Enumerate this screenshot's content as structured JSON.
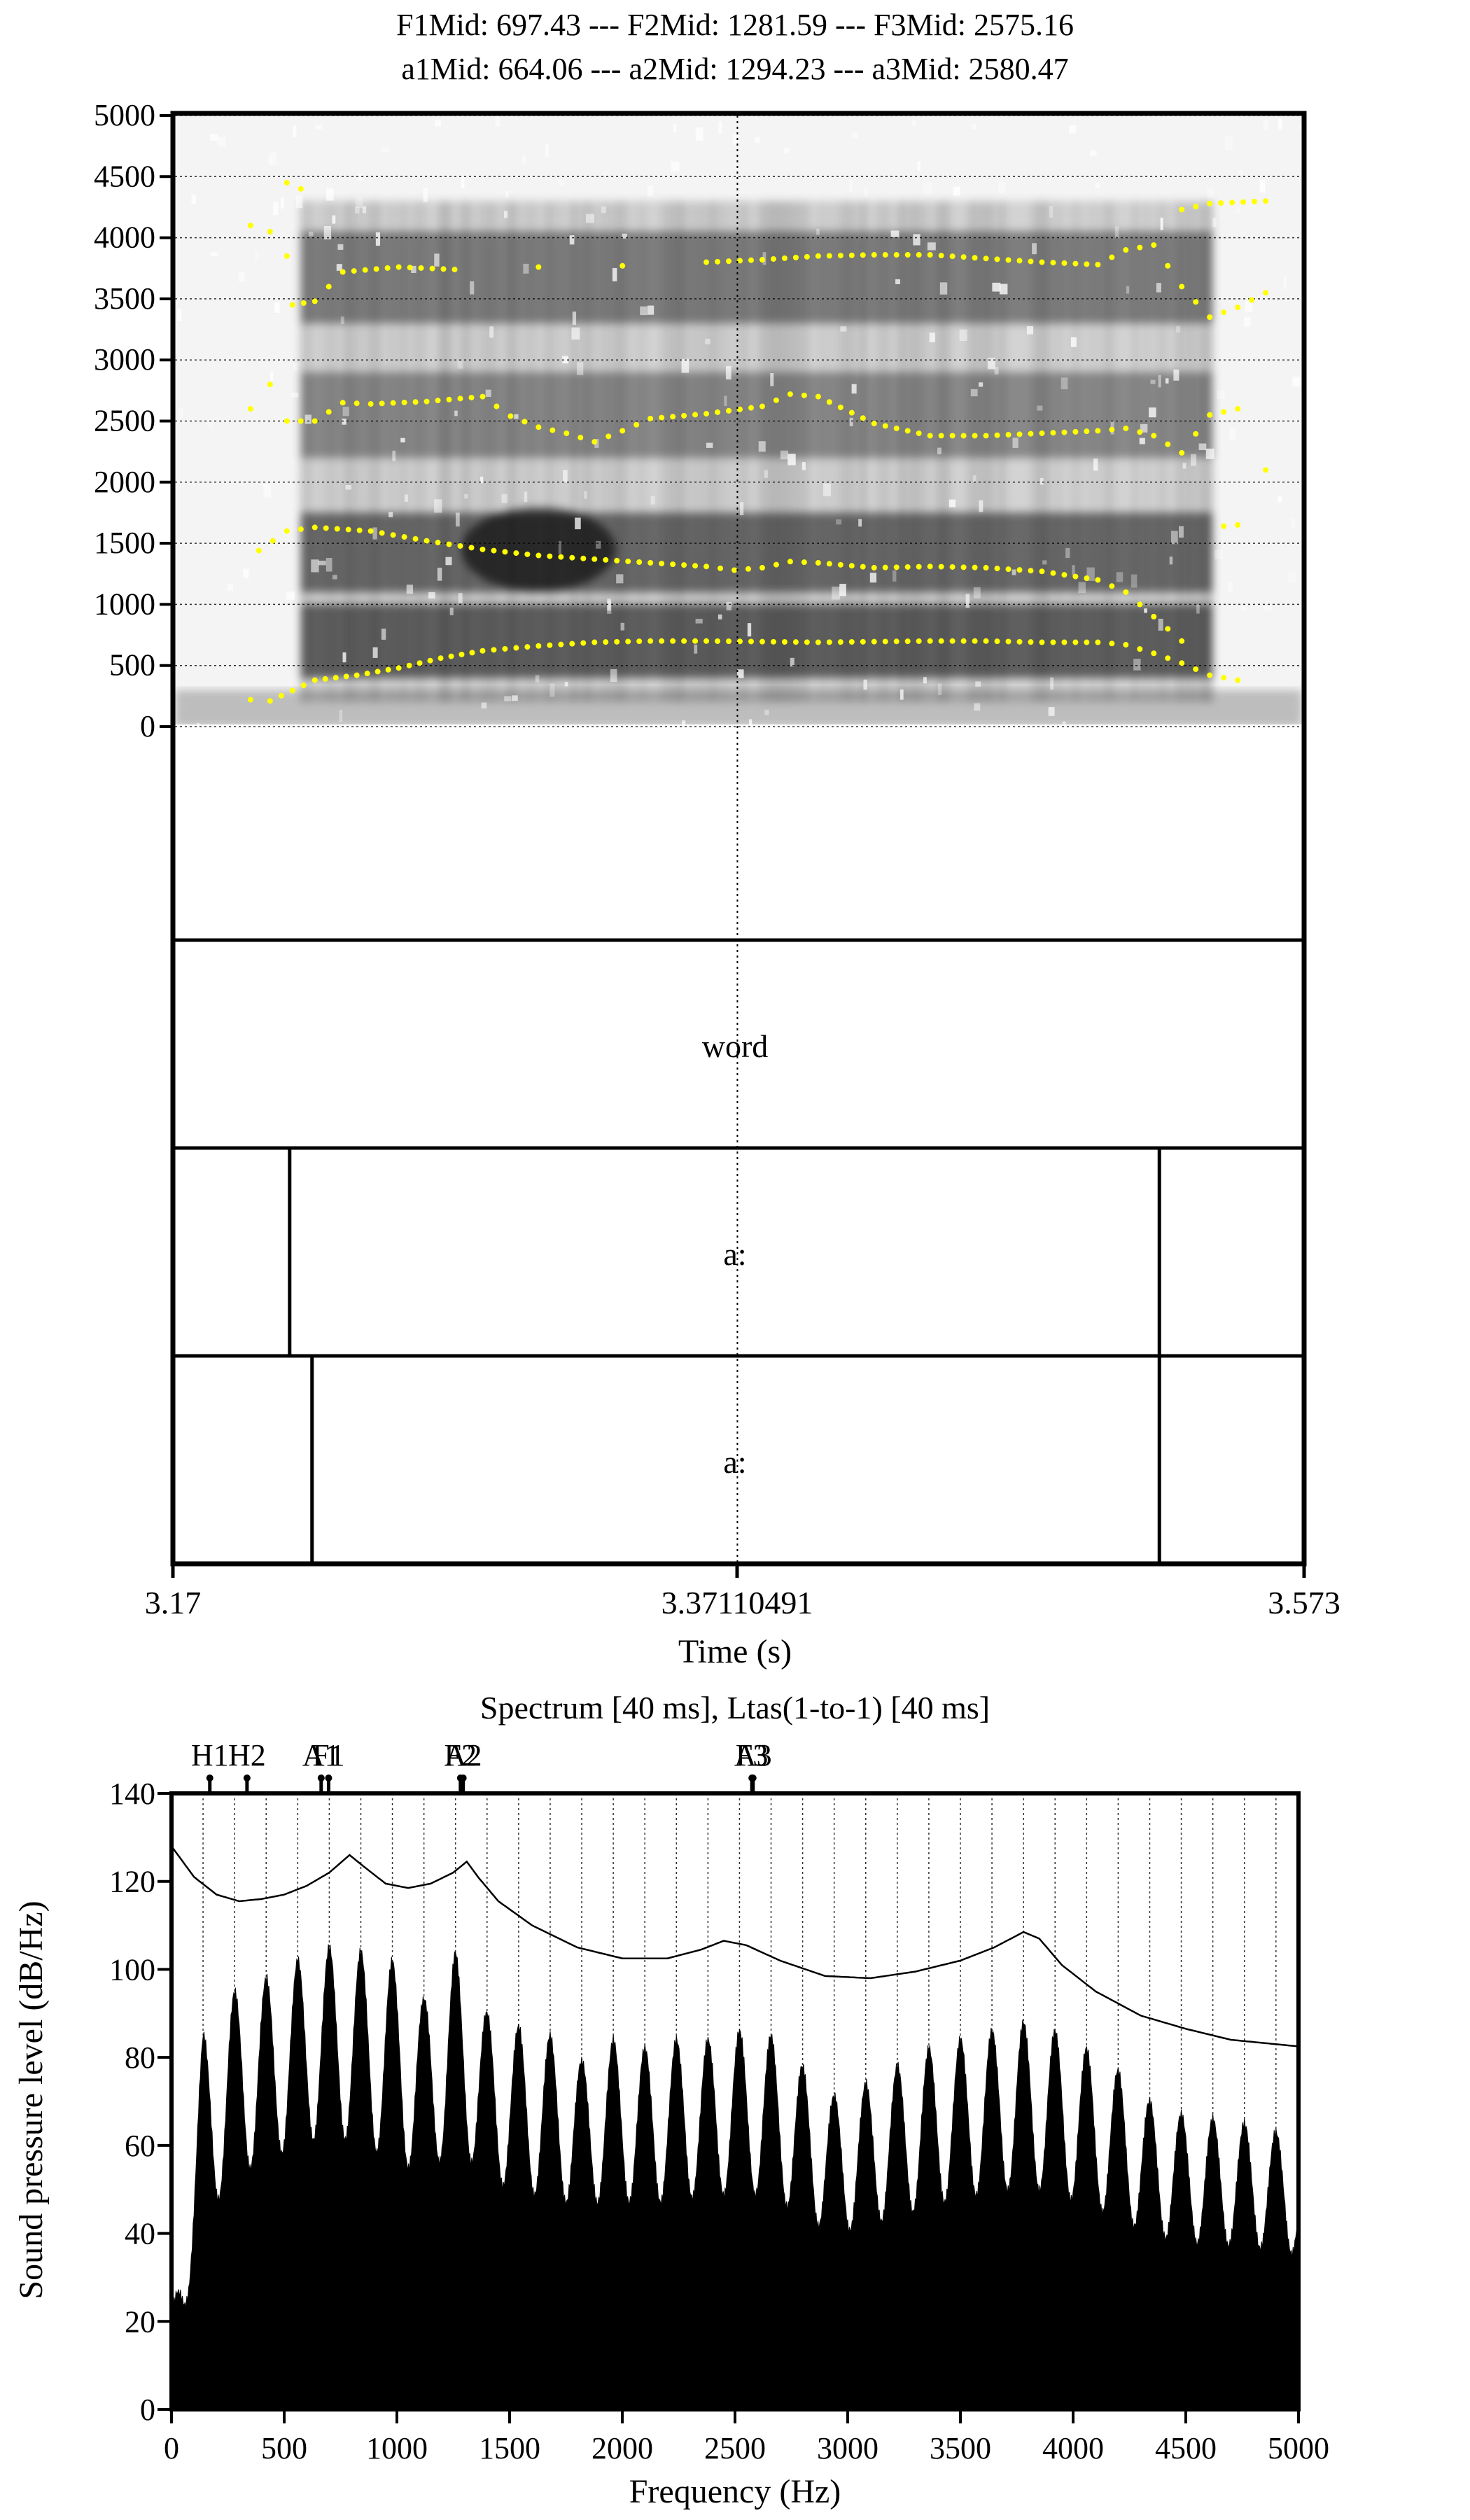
{
  "chart_data": [
    {
      "type": "heatmap",
      "chart_kind": "spectrogram-with-textgrid",
      "title_lines": [
        "F1Mid: 697.43 --- F2Mid: 1281.59 --- F3Mid: 2575.16",
        "a1Mid: 664.06 --- a2Mid: 1294.23 --- a3Mid: 2580.47"
      ],
      "xlabel": "Time (s)",
      "xlim": [
        3.17,
        3.573
      ],
      "x_ticks": [
        "3.17",
        "3.37110491",
        "3.573"
      ],
      "cursor_time": 3.37110491,
      "ylim": [
        0,
        5000
      ],
      "y_ticks": [
        0,
        500,
        1000,
        1500,
        2000,
        2500,
        3000,
        3500,
        4000,
        4500,
        5000
      ],
      "grid": true,
      "colors": {
        "formant_dots": "#ffff00",
        "spectrogram_dark": "#000000",
        "background": "#ffffff"
      },
      "voicing": {
        "start": 3.215,
        "end": 3.541
      },
      "formant_tracks": [
        {
          "name": "F1",
          "points": [
            [
              3.197,
              220
            ],
            [
              3.204,
              210
            ],
            [
              3.22,
              380
            ],
            [
              3.235,
              420
            ],
            [
              3.25,
              480
            ],
            [
              3.265,
              560
            ],
            [
              3.28,
              620
            ],
            [
              3.3,
              660
            ],
            [
              3.32,
              690
            ],
            [
              3.34,
              700
            ],
            [
              3.36,
              700
            ],
            [
              3.38,
              695
            ],
            [
              3.4,
              690
            ],
            [
              3.42,
              695
            ],
            [
              3.44,
              700
            ],
            [
              3.46,
              700
            ],
            [
              3.48,
              690
            ],
            [
              3.5,
              690
            ],
            [
              3.51,
              670
            ],
            [
              3.52,
              600
            ],
            [
              3.53,
              520
            ],
            [
              3.54,
              420
            ],
            [
              3.55,
              380
            ]
          ]
        },
        {
          "name": "F2",
          "points": [
            [
              3.2,
              1440
            ],
            [
              3.21,
              1600
            ],
            [
              3.22,
              1630
            ],
            [
              3.24,
              1600
            ],
            [
              3.26,
              1520
            ],
            [
              3.28,
              1450
            ],
            [
              3.3,
              1400
            ],
            [
              3.32,
              1370
            ],
            [
              3.34,
              1340
            ],
            [
              3.36,
              1310
            ],
            [
              3.37,
              1280
            ],
            [
              3.38,
              1300
            ],
            [
              3.39,
              1350
            ],
            [
              3.4,
              1340
            ],
            [
              3.42,
              1300
            ],
            [
              3.44,
              1310
            ],
            [
              3.46,
              1300
            ],
            [
              3.48,
              1270
            ],
            [
              3.5,
              1200
            ],
            [
              3.51,
              1100
            ],
            [
              3.52,
              900
            ],
            [
              3.53,
              700
            ],
            [
              3.545,
              1640
            ],
            [
              3.55,
              1650
            ]
          ]
        },
        {
          "name": "F3",
          "points": [
            [
              3.197,
              2600
            ],
            [
              3.204,
              2800
            ],
            [
              3.21,
              2500
            ],
            [
              3.22,
              2500
            ],
            [
              3.23,
              2650
            ],
            [
              3.24,
              2640
            ],
            [
              3.26,
              2660
            ],
            [
              3.28,
              2700
            ],
            [
              3.29,
              2540
            ],
            [
              3.3,
              2450
            ],
            [
              3.31,
              2400
            ],
            [
              3.32,
              2330
            ],
            [
              3.33,
              2420
            ],
            [
              3.34,
              2520
            ],
            [
              3.36,
              2560
            ],
            [
              3.38,
              2620
            ],
            [
              3.39,
              2720
            ],
            [
              3.4,
              2700
            ],
            [
              3.42,
              2480
            ],
            [
              3.44,
              2380
            ],
            [
              3.46,
              2380
            ],
            [
              3.48,
              2400
            ],
            [
              3.5,
              2420
            ],
            [
              3.51,
              2440
            ],
            [
              3.52,
              2380
            ],
            [
              3.53,
              2240
            ],
            [
              3.54,
              2550
            ],
            [
              3.55,
              2600
            ],
            [
              3.56,
              2100
            ]
          ]
        },
        {
          "name": "F4",
          "points": [
            [
              3.197,
              4100
            ],
            [
              3.204,
              4050
            ],
            [
              3.21,
              3850
            ],
            [
              3.212,
              3450
            ],
            [
              3.22,
              3480
            ],
            [
              3.23,
              3720
            ],
            [
              3.25,
              3760
            ],
            [
              3.27,
              3740
            ],
            [
              3.3,
              3760
            ],
            [
              3.33,
              3770
            ],
            [
              3.36,
              3800
            ],
            [
              3.38,
              3820
            ],
            [
              3.4,
              3850
            ],
            [
              3.42,
              3860
            ],
            [
              3.44,
              3860
            ],
            [
              3.46,
              3830
            ],
            [
              3.48,
              3800
            ],
            [
              3.5,
              3780
            ],
            [
              3.51,
              3900
            ],
            [
              3.52,
              3940
            ],
            [
              3.53,
              3600
            ],
            [
              3.54,
              3350
            ],
            [
              3.55,
              3430
            ],
            [
              3.56,
              3550
            ]
          ]
        },
        {
          "name": "F5",
          "points": [
            [
              3.21,
              4450
            ],
            [
              3.215,
              4400
            ],
            [
              3.53,
              4230
            ],
            [
              3.54,
              4280
            ],
            [
              3.56,
              4300
            ]
          ]
        }
      ],
      "tiers": [
        {
          "name": "tier-1",
          "intervals": []
        },
        {
          "name": "tier-2",
          "boundaries": [],
          "labels": [
            "word"
          ]
        },
        {
          "name": "tier-3",
          "boundaries": [
            3.211,
            3.522
          ],
          "labels": [
            "",
            "a:",
            ""
          ]
        },
        {
          "name": "tier-4",
          "boundaries": [
            3.219,
            3.522
          ],
          "labels": [
            "",
            "a:",
            ""
          ]
        }
      ]
    },
    {
      "type": "area",
      "chart_kind": "spectrum-with-ltas",
      "title": "Spectrum [40 ms], Ltas(1-to-1) [40 ms]",
      "xlabel": "Frequency (Hz)",
      "ylabel": "Sound pressure level (dB/Hz)",
      "xlim": [
        0,
        5000
      ],
      "ylim": [
        0,
        140
      ],
      "x_ticks": [
        0,
        500,
        1000,
        1500,
        2000,
        2500,
        3000,
        3500,
        4000,
        4500,
        5000
      ],
      "y_ticks": [
        0,
        20,
        40,
        60,
        80,
        100,
        120,
        140
      ],
      "grid": "vertical dotted lines at harmonics",
      "f0_hz": 140,
      "top_markers": [
        {
          "label": "H1",
          "x": 170
        },
        {
          "label": "H2",
          "x": 335
        },
        {
          "label": "A1",
          "x": 664
        },
        {
          "label": "F1",
          "x": 697
        },
        {
          "label": "A2",
          "x": 1294
        },
        {
          "label": "F2",
          "x": 1282
        },
        {
          "label": "A3",
          "x": 2580
        },
        {
          "label": "F3",
          "x": 2575
        }
      ],
      "ltas_envelope": {
        "points": [
          [
            0,
            128
          ],
          [
            100,
            121
          ],
          [
            200,
            117
          ],
          [
            300,
            115.5
          ],
          [
            400,
            116
          ],
          [
            500,
            117
          ],
          [
            600,
            119
          ],
          [
            700,
            122
          ],
          [
            790,
            126
          ],
          [
            850,
            123.5
          ],
          [
            950,
            119.5
          ],
          [
            1050,
            118.5
          ],
          [
            1150,
            119.5
          ],
          [
            1250,
            122
          ],
          [
            1310,
            124.5
          ],
          [
            1360,
            121
          ],
          [
            1450,
            115.5
          ],
          [
            1600,
            110
          ],
          [
            1800,
            105
          ],
          [
            2000,
            102.5
          ],
          [
            2200,
            102.5
          ],
          [
            2350,
            104.5
          ],
          [
            2450,
            106.5
          ],
          [
            2550,
            105.5
          ],
          [
            2700,
            102
          ],
          [
            2900,
            98.5
          ],
          [
            3100,
            98
          ],
          [
            3300,
            99.5
          ],
          [
            3500,
            102
          ],
          [
            3650,
            105
          ],
          [
            3780,
            108.5
          ],
          [
            3850,
            107
          ],
          [
            3950,
            101
          ],
          [
            4100,
            95
          ],
          [
            4300,
            89.5
          ],
          [
            4500,
            86.5
          ],
          [
            4700,
            84
          ],
          [
            5000,
            82.5
          ]
        ]
      },
      "spectrum_peaks": {
        "points": [
          [
            0,
            20
          ],
          [
            60,
            45
          ],
          [
            140,
            85
          ],
          [
            280,
            95
          ],
          [
            420,
            98
          ],
          [
            560,
            102
          ],
          [
            700,
            105
          ],
          [
            840,
            104
          ],
          [
            980,
            102
          ],
          [
            1120,
            93
          ],
          [
            1260,
            104
          ],
          [
            1400,
            90
          ],
          [
            1540,
            87
          ],
          [
            1680,
            85
          ],
          [
            1820,
            79
          ],
          [
            1960,
            84
          ],
          [
            2100,
            82
          ],
          [
            2240,
            84
          ],
          [
            2380,
            84
          ],
          [
            2520,
            86
          ],
          [
            2660,
            85
          ],
          [
            2800,
            78
          ],
          [
            2940,
            71
          ],
          [
            3080,
            74
          ],
          [
            3220,
            78
          ],
          [
            3360,
            82
          ],
          [
            3500,
            84
          ],
          [
            3640,
            86
          ],
          [
            3780,
            88
          ],
          [
            3920,
            86
          ],
          [
            4060,
            82
          ],
          [
            4200,
            77
          ],
          [
            4340,
            70
          ],
          [
            4480,
            67
          ],
          [
            4620,
            66
          ],
          [
            4760,
            65
          ],
          [
            4900,
            63
          ],
          [
            5000,
            62
          ]
        ]
      },
      "spectrum_troughs": {
        "points": [
          [
            0,
            12
          ],
          [
            60,
            20
          ],
          [
            140,
            38
          ],
          [
            280,
            48
          ],
          [
            420,
            52
          ],
          [
            560,
            55
          ],
          [
            700,
            58
          ],
          [
            840,
            55
          ],
          [
            980,
            52
          ],
          [
            1120,
            48
          ],
          [
            1260,
            55
          ],
          [
            1400,
            48
          ],
          [
            1540,
            45
          ],
          [
            1680,
            44
          ],
          [
            1820,
            42
          ],
          [
            1960,
            44
          ],
          [
            2100,
            42
          ],
          [
            2240,
            44
          ],
          [
            2380,
            44
          ],
          [
            2520,
            45
          ],
          [
            2660,
            44
          ],
          [
            2800,
            40
          ],
          [
            2940,
            36
          ],
          [
            3080,
            38
          ],
          [
            3220,
            40
          ],
          [
            3360,
            42
          ],
          [
            3500,
            44
          ],
          [
            3640,
            45
          ],
          [
            3780,
            46
          ],
          [
            3920,
            45
          ],
          [
            4060,
            42
          ],
          [
            4200,
            40
          ],
          [
            4340,
            36
          ],
          [
            4480,
            35
          ],
          [
            4620,
            34
          ],
          [
            4760,
            34
          ],
          [
            4900,
            33
          ],
          [
            5000,
            32
          ]
        ]
      }
    }
  ]
}
